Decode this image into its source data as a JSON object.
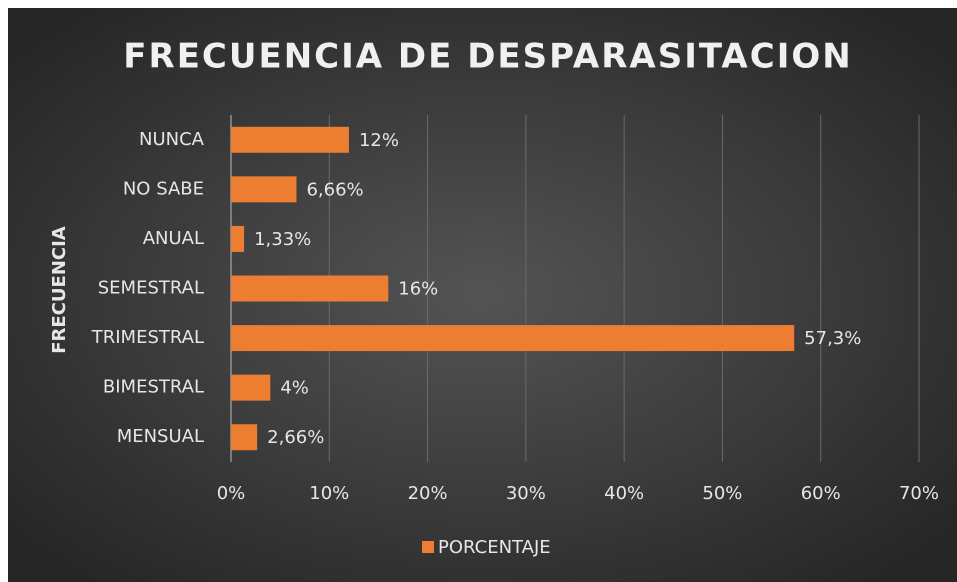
{
  "chart_data": {
    "type": "bar",
    "orientation": "horizontal",
    "title": "FRECUENCIA DE DESPARASITACION",
    "y_axis_label": "FRECUENCIA",
    "categories": [
      "NUNCA",
      "NO SABE",
      "ANUAL",
      "SEMESTRAL",
      "TRIMESTRAL",
      "BIMESTRAL",
      "MENSUAL"
    ],
    "series": [
      {
        "name": "PORCENTAJE",
        "color": "#ed7d31",
        "values": [
          12,
          6.66,
          1.33,
          16,
          57.3,
          4,
          2.66
        ],
        "value_labels": [
          "12%",
          "6,66%",
          "1,33%",
          "16%",
          "57,3%",
          "4%",
          "2,66%"
        ]
      }
    ],
    "xlim": [
      0,
      70
    ],
    "xticks": [
      {
        "value": 0,
        "label": "0%"
      },
      {
        "value": 10,
        "label": "10%"
      },
      {
        "value": 20,
        "label": "20%"
      },
      {
        "value": 30,
        "label": "30%"
      },
      {
        "value": 40,
        "label": "40%"
      },
      {
        "value": 50,
        "label": "50%"
      },
      {
        "value": 60,
        "label": "60%"
      },
      {
        "value": 70,
        "label": "70%"
      }
    ],
    "grid": true,
    "legend": "bottom"
  }
}
